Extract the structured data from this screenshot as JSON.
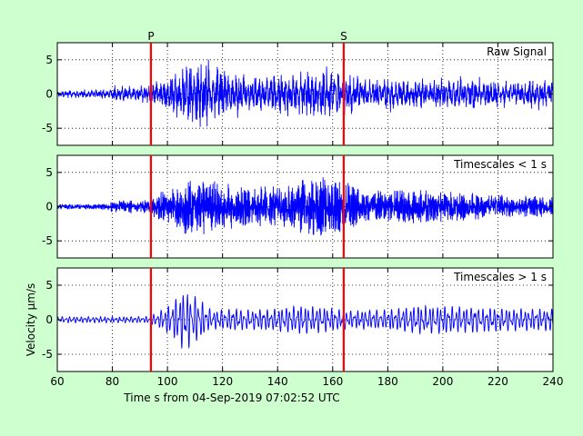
{
  "chart_data": {
    "type": "line",
    "figure_background": "#ceffce",
    "axes_background": "#ffffff",
    "trace_color": "#0000ff",
    "marker_color": "#ff0000",
    "xlim": [
      60,
      240
    ],
    "xticks": [
      60,
      80,
      100,
      120,
      140,
      160,
      180,
      200,
      220,
      240
    ],
    "xlabel": "Time s from 04-Sep-2019 07:02:52 UTC",
    "grid": "dotted",
    "phase_markers": [
      {
        "label": "P",
        "x": 94
      },
      {
        "label": "S",
        "x": 164
      }
    ],
    "panels": [
      {
        "title": "Raw Signal",
        "ylim": [
          -7.5,
          7.5
        ],
        "yticks": [
          -5,
          0,
          5
        ],
        "ylabel": "",
        "envelope": [
          [
            60,
            0.7
          ],
          [
            78,
            0.8
          ],
          [
            80,
            1.3
          ],
          [
            94,
            1.4
          ],
          [
            96,
            2.3
          ],
          [
            102,
            3.6
          ],
          [
            106,
            5.2
          ],
          [
            114,
            6.2
          ],
          [
            120,
            4.6
          ],
          [
            126,
            3.5
          ],
          [
            140,
            3.4
          ],
          [
            150,
            4.2
          ],
          [
            156,
            4.8
          ],
          [
            166,
            3.4
          ],
          [
            170,
            2.6
          ],
          [
            180,
            2.9
          ],
          [
            192,
            2.4
          ],
          [
            205,
            2.7
          ],
          [
            220,
            2.3
          ],
          [
            240,
            2.4
          ]
        ],
        "fast_share": 0.55,
        "seed": 11
      },
      {
        "title": "Timescales < 1 s",
        "ylim": [
          -7.5,
          7.5
        ],
        "yticks": [
          -5,
          0,
          5
        ],
        "ylabel": "",
        "envelope": [
          [
            60,
            0.35
          ],
          [
            78,
            0.4
          ],
          [
            80,
            0.8
          ],
          [
            94,
            1.0
          ],
          [
            96,
            1.8
          ],
          [
            102,
            2.8
          ],
          [
            108,
            4.2
          ],
          [
            116,
            3.4
          ],
          [
            126,
            2.6
          ],
          [
            140,
            2.8
          ],
          [
            150,
            3.8
          ],
          [
            156,
            4.2
          ],
          [
            166,
            3.0
          ],
          [
            172,
            2.1
          ],
          [
            190,
            2.3
          ],
          [
            200,
            2.0
          ],
          [
            220,
            1.6
          ],
          [
            240,
            1.4
          ]
        ],
        "fast_share": 1.0,
        "seed": 23
      },
      {
        "title": "Timescales > 1 s",
        "ylim": [
          -7.5,
          7.5
        ],
        "yticks": [
          -5,
          0,
          5
        ],
        "ylabel": "Velocity μm/s",
        "envelope": [
          [
            60,
            0.45
          ],
          [
            92,
            0.45
          ],
          [
            96,
            0.9
          ],
          [
            102,
            2.6
          ],
          [
            106,
            4.6
          ],
          [
            110,
            3.6
          ],
          [
            116,
            1.4
          ],
          [
            122,
            1.6
          ],
          [
            136,
            1.5
          ],
          [
            148,
            2.1
          ],
          [
            156,
            1.9
          ],
          [
            166,
            1.3
          ],
          [
            180,
            1.5
          ],
          [
            192,
            2.1
          ],
          [
            200,
            2.0
          ],
          [
            212,
            1.9
          ],
          [
            222,
            1.7
          ],
          [
            232,
            1.6
          ],
          [
            240,
            1.7
          ]
        ],
        "fast_share": 0.0,
        "seed": 37
      }
    ]
  }
}
